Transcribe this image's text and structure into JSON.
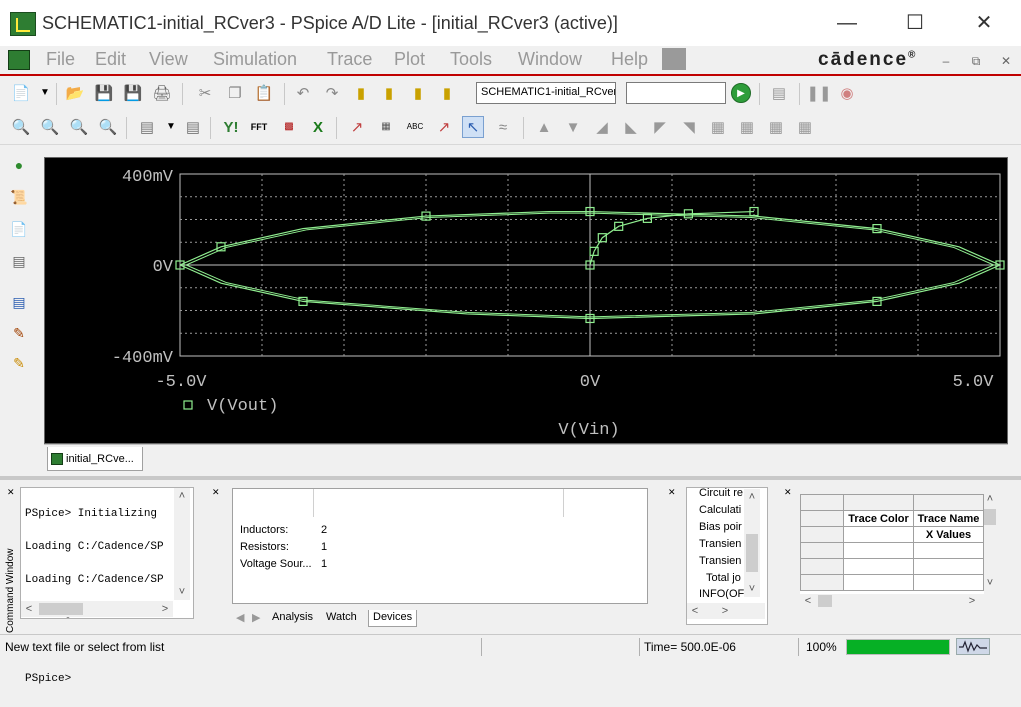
{
  "window": {
    "title": "SCHEMATIC1-initial_RCver3 - PSpice A/D Lite - [initial_RCver3 (active)]",
    "minimize_icon": "minimize-icon",
    "maximize_icon": "maximize-icon",
    "close_icon": "close-icon"
  },
  "menu": {
    "items": [
      "File",
      "Edit",
      "View",
      "Simulation",
      "Trace",
      "Plot",
      "Tools",
      "Window",
      "Help"
    ],
    "brand": "cādence",
    "brand_mark": "®"
  },
  "toolbar": {
    "schematic_value": "SCHEMATIC1-initial_RCver",
    "text_field_value": ""
  },
  "plot": {
    "trace_name": "V(Vout)",
    "x_axis_title": "V(Vin)",
    "x_ticks": [
      "-5.0V",
      "0V",
      "5.0V"
    ],
    "y_ticks": [
      "400mV",
      "0V",
      "-400mV"
    ],
    "background": "#000000",
    "trace_color": "#90ee90",
    "axis_color": "#c0c0c0"
  },
  "chart_data": {
    "type": "scatter",
    "title": "",
    "xlabel": "V(Vin)",
    "ylabel": "",
    "xlim": [
      -5.0,
      5.0
    ],
    "ylim": [
      -400,
      400
    ],
    "y_unit": "mV",
    "x_unit": "V",
    "grid": true,
    "legend": "bottom-left",
    "series": [
      {
        "name": "V(Vout)",
        "x": [
          -5.0,
          -4.5,
          -3.5,
          -2.0,
          -0.5,
          0.0,
          2.0,
          3.5,
          4.5,
          5.0,
          4.5,
          3.5,
          2.0,
          0.0,
          -1.5,
          -3.5,
          -4.5,
          -5.0
        ],
        "y": [
          0,
          80,
          160,
          215,
          235,
          235,
          215,
          160,
          80,
          0,
          -80,
          -160,
          -215,
          -235,
          -215,
          -160,
          -80,
          0
        ]
      },
      {
        "name": "",
        "x": [
          0.0,
          0.05,
          0.15,
          0.35,
          0.7,
          1.2,
          2.0
        ],
        "y": [
          0,
          60,
          120,
          170,
          205,
          225,
          235
        ]
      }
    ]
  },
  "tabs": {
    "plot_tab": "initial_RCve..."
  },
  "command_window": {
    "label": "Command Window",
    "lines": [
      "PSpice> Initializing",
      "Loading C:/Cadence/SP",
      "Loading C:/Cadence/SP",
      "Loading C:/Cadence/SP",
      "",
      "PSpice>"
    ]
  },
  "devices": {
    "rows": [
      {
        "name": "Inductors:",
        "value": "2"
      },
      {
        "name": "Resistors:",
        "value": "1"
      },
      {
        "name": "Voltage Sour...",
        "value": "1"
      }
    ],
    "tabs": [
      "Analysis",
      "Watch",
      "Devices"
    ]
  },
  "progress_list": {
    "items": [
      "Circuit re",
      "Calculati",
      "Bias poir",
      "Transien",
      "Transien",
      "Total jo",
      "INFO(OF"
    ]
  },
  "property_grid": {
    "headers": [
      "Trace Color",
      "Trace Name"
    ],
    "subheader": "X Values"
  },
  "status": {
    "message": "New text file or select from list",
    "time": "Time= 500.0E-06",
    "zoom": "100%",
    "progress": 1.0
  }
}
